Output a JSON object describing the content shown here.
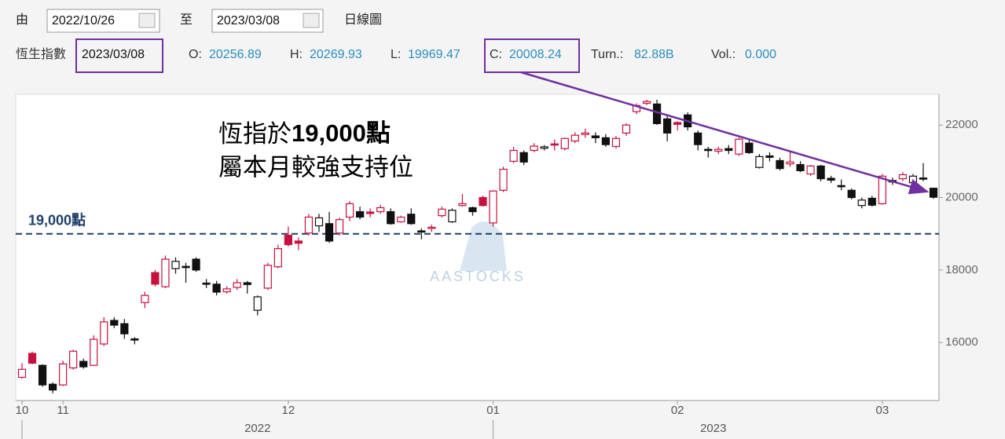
{
  "toolbar": {
    "from_label": "由",
    "from_date": "2022/10/26",
    "to_label": "至",
    "to_date": "2023/03/08",
    "chart_kind": "日線圖"
  },
  "info": {
    "index_name": "恆生指數",
    "date": "2023/03/08",
    "open_label": "O:",
    "high_label": "H:",
    "low_label": "L:",
    "close_label": "C:",
    "turnover_label": "Turn.:",
    "turnover": "82.88B",
    "volume_label": "Vol.:",
    "volume": "0.000"
  },
  "chart_data": {
    "type": "candlestick",
    "categories": [
      "10",
      null,
      null,
      null,
      "11",
      null,
      null,
      null,
      null,
      null,
      null,
      null,
      null,
      null,
      null,
      null,
      null,
      null,
      null,
      null,
      null,
      null,
      null,
      null,
      null,
      null,
      "12",
      null,
      null,
      null,
      null,
      null,
      null,
      null,
      null,
      null,
      null,
      null,
      null,
      null,
      null,
      null,
      null,
      null,
      null,
      null,
      "01",
      null,
      null,
      null,
      null,
      null,
      null,
      null,
      null,
      null,
      null,
      null,
      null,
      null,
      null,
      null,
      null,
      null,
      "02",
      null,
      null,
      null,
      null,
      null,
      null,
      null,
      null,
      null,
      null,
      null,
      null,
      null,
      null,
      null,
      null,
      null,
      null,
      null,
      "03",
      null,
      null,
      null,
      null,
      null
    ],
    "year_groups": [
      {
        "label": "2022",
        "start": 0
      },
      {
        "label": "2023",
        "start": 46
      }
    ],
    "open": [
      15040,
      15700,
      15370,
      14850,
      14830,
      15300,
      15480,
      15370,
      15960,
      16610,
      16520,
      16100,
      17100,
      17930,
      17540,
      18040,
      18100,
      18300,
      17640,
      17610,
      17400,
      17520,
      17650,
      16890,
      17500,
      18090,
      18960,
      18800,
      19020,
      19220,
      19280,
      19020,
      19460,
      19610,
      19600,
      19610,
      19610,
      19330,
      19540,
      19080,
      19150,
      19500,
      19330,
      19780,
      19720,
      20000,
      19300,
      20200,
      21000,
      21240,
      21300,
      21360,
      21480,
      21350,
      21560,
      21740,
      21700,
      21650,
      21410,
      21780,
      22370,
      22600,
      22580,
      22170,
      22070,
      22280,
      21780,
      21330,
      21280,
      21350,
      21200,
      21500,
      20830,
      21150,
      21020,
      20930,
      20910,
      20650,
      20870,
      20530,
      20330,
      20200,
      19780,
      19980,
      19830,
      20470,
      20520,
      20410,
      20540,
      20256.89
    ],
    "high": [
      15430,
      15750,
      15400,
      14900,
      15500,
      15800,
      15550,
      16200,
      16700,
      16700,
      16650,
      16150,
      17400,
      18000,
      18400,
      18350,
      18200,
      18350,
      17750,
      17700,
      17550,
      17750,
      17700,
      17300,
      18200,
      18700,
      19200,
      18900,
      19550,
      19550,
      19600,
      19450,
      19900,
      19750,
      19700,
      19800,
      19700,
      19500,
      19700,
      19150,
      19250,
      19750,
      19700,
      20100,
      19750,
      20050,
      20200,
      20850,
      21400,
      21300,
      21500,
      21450,
      21600,
      21650,
      21800,
      21900,
      21800,
      21750,
      21700,
      22050,
      22600,
      22700,
      22700,
      22250,
      22100,
      22350,
      21850,
      21400,
      21400,
      21450,
      21650,
      21600,
      21200,
      21250,
      21100,
      21300,
      21000,
      20900,
      20900,
      20600,
      20500,
      20250,
      20000,
      20050,
      20650,
      20550,
      20700,
      20650,
      20950,
      20269.93
    ],
    "low": [
      15000,
      15400,
      14780,
      14600,
      14800,
      15250,
      15280,
      15350,
      15900,
      16400,
      16100,
      15950,
      16950,
      17550,
      17500,
      17900,
      17650,
      17950,
      17500,
      17300,
      17350,
      17450,
      17350,
      16750,
      17450,
      18050,
      18650,
      18550,
      18950,
      19050,
      18750,
      18950,
      19350,
      19400,
      19450,
      19550,
      19250,
      19300,
      19250,
      18850,
      19050,
      19450,
      19300,
      19750,
      19500,
      19750,
      19200,
      20150,
      20950,
      20900,
      21250,
      21300,
      21300,
      21300,
      21500,
      21650,
      21500,
      21400,
      21350,
      21700,
      22300,
      22550,
      22000,
      21550,
      21850,
      21850,
      21300,
      21100,
      21200,
      21200,
      21150,
      21200,
      20800,
      21000,
      20750,
      20850,
      20700,
      20600,
      20450,
      20400,
      20200,
      19950,
      19700,
      19750,
      19800,
      20350,
      20450,
      20350,
      20450,
      19969.47
    ],
    "close": [
      15260,
      15430,
      14830,
      14690,
      15410,
      15760,
      15330,
      16090,
      16570,
      16480,
      16240,
      16070,
      17300,
      17610,
      18300,
      18240,
      18080,
      18000,
      17610,
      17390,
      17480,
      17650,
      17600,
      17260,
      18130,
      18590,
      18700,
      18740,
      19460,
      19440,
      18800,
      19390,
      19830,
      19460,
      19560,
      19720,
      19280,
      19460,
      19280,
      19050,
      19180,
      19680,
      19650,
      19830,
      19610,
      19780,
      20180,
      20780,
      21300,
      20980,
      21420,
      21400,
      21450,
      21630,
      21720,
      21780,
      21650,
      21460,
      21630,
      22000,
      22540,
      22650,
      22040,
      21780,
      22020,
      21950,
      21460,
      21300,
      21330,
      21300,
      21610,
      21240,
      21130,
      21110,
      20800,
      20980,
      20740,
      20870,
      20520,
      20480,
      20300,
      20000,
      19930,
      19790,
      20590,
      20430,
      20630,
      20590,
      20520,
      20008.24
    ],
    "up_color": "#c8103e",
    "down_color": "#111111",
    "ylim": [
      14400,
      22850
    ],
    "yticks": [
      16000,
      18000,
      20000,
      22000
    ],
    "reference_line": {
      "value": 19000,
      "label": "19,000點",
      "color": "#1f3f6b"
    },
    "annotation": {
      "line1_regular": "恆指於",
      "line1_bold": "19,000點",
      "line2": "屬本月較強支持位"
    },
    "watermark": "AASTOCKS"
  }
}
